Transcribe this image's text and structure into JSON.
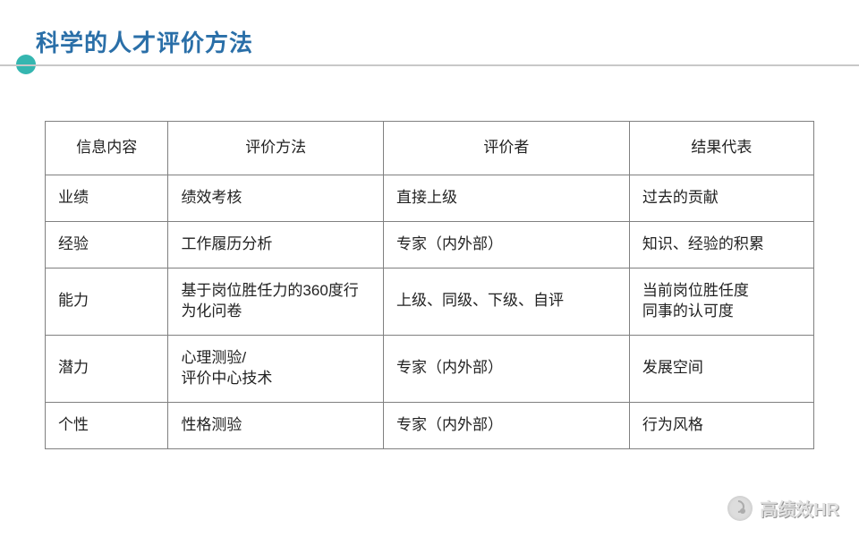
{
  "title": "科学的人才评价方法",
  "colors": {
    "title": "#2a6fa8",
    "accent": "#35b6b0",
    "divider": "#c8c8c8",
    "border": "#808080"
  },
  "table": {
    "columns": [
      "信息内容",
      "评价方法",
      "评价者",
      "结果代表"
    ],
    "rows": [
      [
        "业绩",
        "绩效考核",
        "直接上级",
        "过去的贡献"
      ],
      [
        "经验",
        "工作履历分析",
        "专家（内外部）",
        "知识、经验的积累"
      ],
      [
        "能力",
        "基于岗位胜任力的360度行为化问卷",
        "上级、同级、下级、自评",
        "当前岗位胜任度\n同事的认可度"
      ],
      [
        "潜力",
        "心理测验/\n评价中心技术",
        "专家（内外部）",
        "发展空间"
      ],
      [
        "个性",
        "性格测验",
        "专家（内外部）",
        "行为风格"
      ]
    ]
  },
  "watermark": "高绩效HR"
}
